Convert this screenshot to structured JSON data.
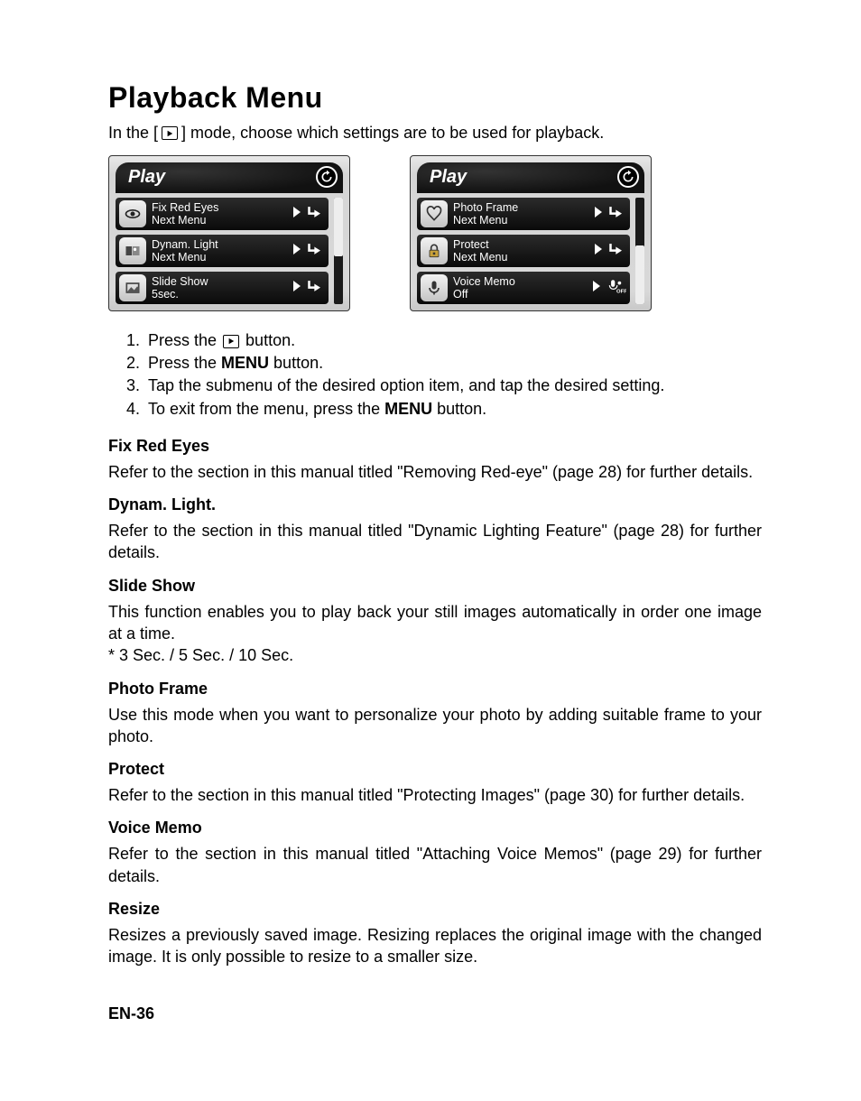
{
  "page_title": "Playback Menu",
  "intro_pre": "In the [",
  "intro_post": "] mode, choose which settings are to be used for playback.",
  "panels": [
    {
      "title": "Play",
      "scroll": "top",
      "rows": [
        {
          "icon": "eye",
          "line1": "Fix Red Eyes",
          "line2": "Next Menu",
          "right_icon": "enter"
        },
        {
          "icon": "dyn",
          "line1": "Dynam. Light",
          "line2": "Next Menu",
          "right_icon": "enter"
        },
        {
          "icon": "slide",
          "line1": "Slide Show",
          "line2": "5sec.",
          "right_icon": "enter"
        }
      ]
    },
    {
      "title": "Play",
      "scroll": "bottom",
      "rows": [
        {
          "icon": "heart",
          "line1": "Photo Frame",
          "line2": "Next Menu",
          "right_icon": "enter"
        },
        {
          "icon": "lock",
          "line1": "Protect",
          "line2": "Next Menu",
          "right_icon": "enter"
        },
        {
          "icon": "mic",
          "line1": "Voice Memo",
          "line2": "Off",
          "right_icon": "mic-off"
        }
      ]
    }
  ],
  "steps": [
    {
      "pre": "Press the ",
      "has_icon": true,
      "post": " button."
    },
    {
      "pre": "Press the ",
      "bold": "MENU",
      "post": " button."
    },
    {
      "pre": "Tap the submenu of the desired option item, and tap the desired setting."
    },
    {
      "pre": "To exit from the menu, press the ",
      "bold": "MENU",
      "post": " button."
    }
  ],
  "sections": [
    {
      "head": "Fix Red Eyes",
      "body": "Refer to the section in this manual titled \"Removing Red-eye\" (page 28)  for further details."
    },
    {
      "head": "Dynam. Light.",
      "body": "Refer to the section in this manual titled \"Dynamic Lighting Feature\" (page 28) for further details."
    },
    {
      "head": "Slide Show",
      "body": "This function enables you to play back your still images automatically in order one image at a time.\n*  3 Sec. / 5 Sec. / 10 Sec."
    },
    {
      "head": "Photo Frame",
      "body": "Use this mode when you want to personalize your photo by adding suitable frame to your photo."
    },
    {
      "head": "Protect",
      "body": "Refer to the section in this manual titled \"Protecting Images\" (page 30) for further details."
    },
    {
      "head": "Voice Memo",
      "body": "Refer to the section in this manual titled \"Attaching Voice Memos\" (page 29) for further details."
    },
    {
      "head": "Resize",
      "body": "Resizes a previously saved image. Resizing replaces the original image with the changed image. It is only possible to resize to a smaller size."
    }
  ],
  "footer": "EN-36",
  "colors": {
    "panel_bg": "#d8d8d8",
    "row_bg": "#1a1a1a",
    "icon_bg": "#dcdcdc"
  }
}
